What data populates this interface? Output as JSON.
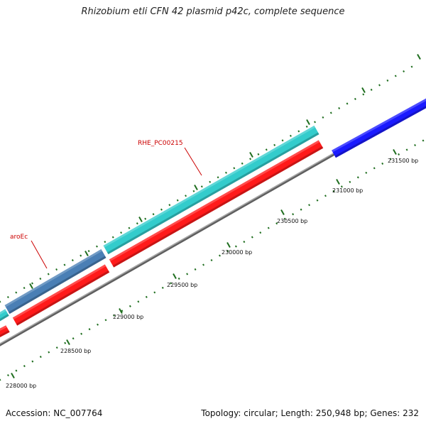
{
  "title": "Rhizobium etli CFN 42 plasmid p42c, complete sequence",
  "footer": {
    "accession": "Accession: NC_007764",
    "info": "Topology: circular; Length: 250,948 bp; Genes: 232"
  },
  "ticks": [
    "228000 bp",
    "228500 bp",
    "229000 bp",
    "229500 bp",
    "230000 bp",
    "230500 bp",
    "231000 bp",
    "231500 bp"
  ],
  "gene_labels": [
    "RHE_PC00215",
    "aroEc"
  ],
  "colors": {
    "backbone": "#8c8c8c",
    "cyan_gene": "#33cccc",
    "steelblue_gene": "#4a7fb5",
    "red_gene": "#ff1a1a",
    "blue_gene": "#1a1aff",
    "tick": "#1f6e1f",
    "label": "#cc0000"
  }
}
